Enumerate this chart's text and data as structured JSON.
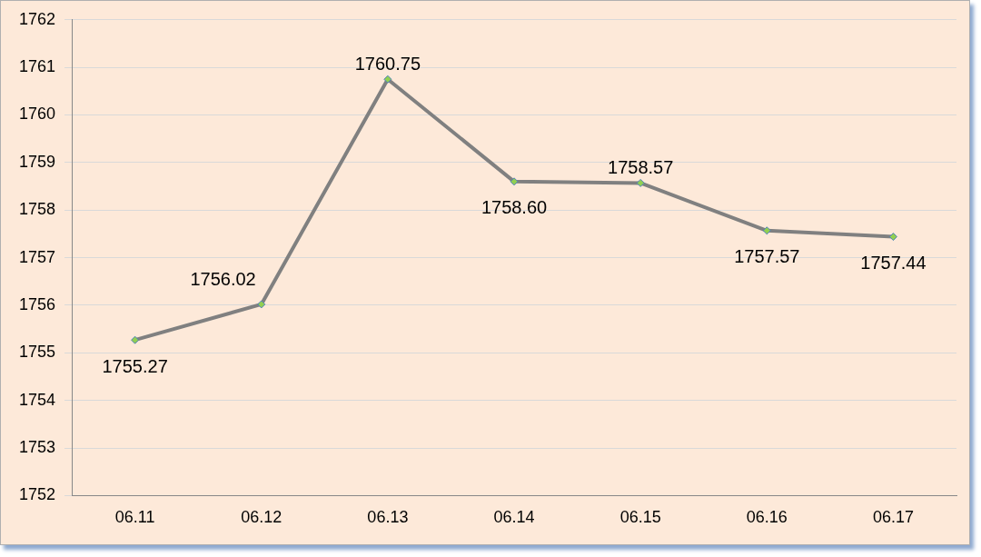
{
  "chart_data": {
    "type": "line",
    "categories": [
      "06.11",
      "06.12",
      "06.13",
      "06.14",
      "06.15",
      "06.16",
      "06.17"
    ],
    "series": [
      {
        "color": "#808080",
        "values": [
          1755.27,
          1756.02,
          1760.75,
          1758.6,
          1758.57,
          1757.57,
          1757.44
        ],
        "value_labels": [
          "1755.27",
          "1756.02",
          "1760.75",
          "1758.60",
          "1758.57",
          "1757.57",
          "1757.44"
        ]
      }
    ],
    "ylim": [
      1752,
      1762
    ],
    "yticks": [
      1752,
      1753,
      1754,
      1755,
      1756,
      1757,
      1758,
      1759,
      1760,
      1761,
      1762
    ],
    "grid": "y",
    "marker": "diamond",
    "line_style": "solid",
    "legend": false
  }
}
